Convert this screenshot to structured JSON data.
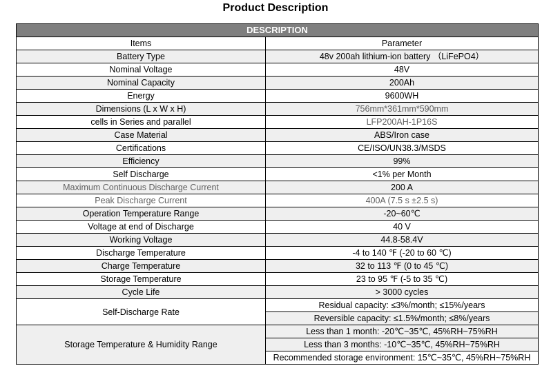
{
  "title": "Product Description",
  "table": {
    "header": "DESCRIPTION",
    "columns": [
      "Items",
      "Parameter"
    ],
    "rows": [
      {
        "item": "Battery Type",
        "value": "48v 200ah lithium-ion battery （LiFePO4）",
        "shaded": true
      },
      {
        "item": "Nominal Voltage",
        "value": "48V",
        "shaded": false
      },
      {
        "item": "Nominal Capacity",
        "value": "200Ah",
        "shaded": true
      },
      {
        "item": "Energy",
        "value": "9600WH",
        "shaded": false
      },
      {
        "item": "Dimensions (L x W x H)",
        "value": "756mm*361mm*590mm",
        "shaded": true
      },
      {
        "item": "cells in Series and parallel",
        "value": "LFP200AH-1P16S",
        "shaded": false
      },
      {
        "item": "Case Material",
        "value": "ABS/Iron case",
        "shaded": true
      },
      {
        "item": "Certifications",
        "value": "CE/ISO/UN38.3/MSDS",
        "shaded": false
      },
      {
        "item": "Efficiency",
        "value": "99%",
        "shaded": true
      },
      {
        "item": "Self Discharge",
        "value": "<1% per Month",
        "shaded": false
      },
      {
        "item": "Maximum Continuous Discharge Current",
        "value": "200 A",
        "shaded": true
      },
      {
        "item": "Peak Discharge Current",
        "value": "400A (7.5 s ±2.5 s)",
        "shaded": false
      },
      {
        "item": "Operation Temperature Range",
        "value": "-20~60℃",
        "shaded": true
      },
      {
        "item": "Voltage at end of Discharge",
        "value": "40 V",
        "shaded": false
      },
      {
        "item": "Working Voltage",
        "value": "44.8-58.4V",
        "shaded": true
      },
      {
        "item": "Discharge Temperature",
        "value": "-4 to 140 ℉ (-20 to 60 ℃)",
        "shaded": false
      },
      {
        "item": "Charge Temperature",
        "value": "32 to 113 ℉ (0 to 45 ℃)",
        "shaded": true
      },
      {
        "item": "Storage Temperature",
        "value": "23 to 95 ℉ (-5 to 35 ℃)",
        "shaded": false
      },
      {
        "item": "Cycle Life",
        "value": "> 3000 cycles",
        "shaded": true
      }
    ],
    "self_discharge_rate": {
      "item": "Self-Discharge Rate",
      "values": [
        "Residual capacity: ≤3%/month; ≤15%/years",
        "Reversible capacity: ≤1.5%/month; ≤8%/years"
      ]
    },
    "storage_humidity": {
      "item": "Storage Temperature & Humidity Range",
      "values": [
        "Less than 1 month: -20℃~35℃, 45%RH~75%RH",
        "Less than 3 months: -10℃~35℃, 45%RH~75%RH",
        "Recommended storage environment: 15℃~35℃, 45%RH~75%RH"
      ]
    }
  }
}
